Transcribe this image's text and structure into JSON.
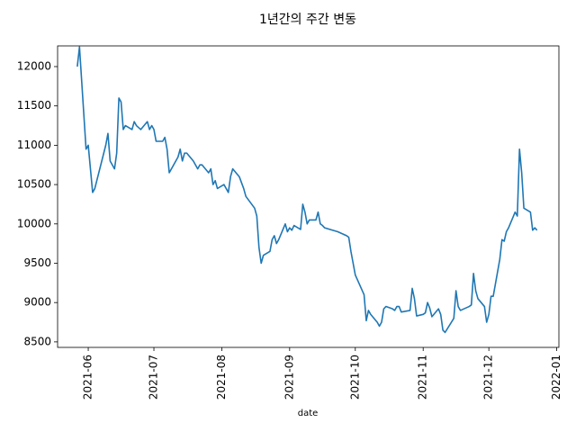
{
  "chart_data": {
    "type": "line",
    "title": "1년간의 주간 변동",
    "x_label": "date",
    "color": "#1f77b4",
    "x": [
      "2021-05-27",
      "2021-05-28",
      "2021-05-31",
      "2021-06-01",
      "2021-06-03",
      "2021-06-04",
      "2021-06-09",
      "2021-06-10",
      "2021-06-11",
      "2021-06-13",
      "2021-06-14",
      "2021-06-15",
      "2021-06-16",
      "2021-06-17",
      "2021-06-18",
      "2021-06-21",
      "2021-06-22",
      "2021-06-23",
      "2021-06-25",
      "2021-06-28",
      "2021-06-29",
      "2021-06-30",
      "2021-07-01",
      "2021-07-02",
      "2021-07-05",
      "2021-07-06",
      "2021-07-07",
      "2021-07-08",
      "2021-07-12",
      "2021-07-13",
      "2021-07-14",
      "2021-07-15",
      "2021-07-16",
      "2021-07-19",
      "2021-07-21",
      "2021-07-22",
      "2021-07-23",
      "2021-07-26",
      "2021-07-27",
      "2021-07-28",
      "2021-07-29",
      "2021-07-30",
      "2021-08-02",
      "2021-08-04",
      "2021-08-05",
      "2021-08-06",
      "2021-08-09",
      "2021-08-11",
      "2021-08-12",
      "2021-08-16",
      "2021-08-17",
      "2021-08-18",
      "2021-08-19",
      "2021-08-20",
      "2021-08-23",
      "2021-08-24",
      "2021-08-25",
      "2021-08-26",
      "2021-08-27",
      "2021-08-30",
      "2021-08-31",
      "2021-09-01",
      "2021-09-02",
      "2021-09-03",
      "2021-09-06",
      "2021-09-07",
      "2021-09-08",
      "2021-09-09",
      "2021-09-10",
      "2021-09-13",
      "2021-09-14",
      "2021-09-15",
      "2021-09-16",
      "2021-09-17",
      "2021-09-23",
      "2021-09-27",
      "2021-09-28",
      "2021-09-29",
      "2021-09-30",
      "2021-10-01",
      "2021-10-05",
      "2021-10-06",
      "2021-10-07",
      "2021-10-08",
      "2021-10-11",
      "2021-10-12",
      "2021-10-13",
      "2021-10-14",
      "2021-10-15",
      "2021-10-18",
      "2021-10-19",
      "2021-10-20",
      "2021-10-21",
      "2021-10-22",
      "2021-10-26",
      "2021-10-27",
      "2021-10-28",
      "2021-10-29",
      "2021-11-01",
      "2021-11-02",
      "2021-11-03",
      "2021-11-04",
      "2021-11-05",
      "2021-11-08",
      "2021-11-09",
      "2021-11-10",
      "2021-11-11",
      "2021-11-15",
      "2021-11-16",
      "2021-11-17",
      "2021-11-18",
      "2021-11-22",
      "2021-11-23",
      "2021-11-24",
      "2021-11-25",
      "2021-11-26",
      "2021-11-29",
      "2021-11-30",
      "2021-12-01",
      "2021-12-02",
      "2021-12-03",
      "2021-12-06",
      "2021-12-07",
      "2021-12-08",
      "2021-12-09",
      "2021-12-10",
      "2021-12-13",
      "2021-12-14",
      "2021-12-15",
      "2021-12-16",
      "2021-12-17",
      "2021-12-20",
      "2021-12-21",
      "2021-12-22",
      "2021-12-23"
    ],
    "values": [
      12000,
      12250,
      10950,
      11000,
      10400,
      10450,
      11000,
      11150,
      10800,
      10700,
      10900,
      11600,
      11550,
      11200,
      11250,
      11200,
      11300,
      11250,
      11200,
      11300,
      11200,
      11250,
      11200,
      11050,
      11050,
      11100,
      10950,
      10650,
      10850,
      10950,
      10800,
      10900,
      10900,
      10800,
      10700,
      10750,
      10750,
      10650,
      10700,
      10500,
      10550,
      10450,
      10500,
      10400,
      10600,
      10700,
      10600,
      10450,
      10350,
      10200,
      10100,
      9700,
      9500,
      9600,
      9650,
      9800,
      9850,
      9750,
      9800,
      10000,
      9900,
      9950,
      9920,
      9980,
      9930,
      10250,
      10150,
      10000,
      10050,
      10050,
      10150,
      10000,
      9980,
      9950,
      9900,
      9850,
      9830,
      9650,
      9500,
      9350,
      9100,
      8770,
      8900,
      8850,
      8750,
      8700,
      8750,
      8920,
      8950,
      8920,
      8900,
      8950,
      8950,
      8880,
      8900,
      9180,
      9050,
      8830,
      8850,
      8870,
      9000,
      8930,
      8820,
      8920,
      8850,
      8650,
      8620,
      8800,
      9150,
      8950,
      8900,
      8950,
      8970,
      9370,
      9150,
      9050,
      8950,
      8750,
      8850,
      9080,
      9080,
      9550,
      9800,
      9780,
      9900,
      9950,
      10150,
      10100,
      10950,
      10650,
      10200,
      10150,
      9920,
      9950,
      9920
    ],
    "xlim": [
      "2021-05-18",
      "2022-01-02"
    ],
    "xticks": [
      {
        "value": "2021-06-01",
        "label": "2021-06"
      },
      {
        "value": "2021-07-01",
        "label": "2021-07"
      },
      {
        "value": "2021-08-01",
        "label": "2021-08"
      },
      {
        "value": "2021-09-01",
        "label": "2021-09"
      },
      {
        "value": "2021-10-01",
        "label": "2021-10"
      },
      {
        "value": "2021-11-01",
        "label": "2021-11"
      },
      {
        "value": "2021-12-01",
        "label": "2021-12"
      },
      {
        "value": "2022-01-01",
        "label": "2022-01"
      }
    ],
    "ylim": [
      8430,
      12263
    ],
    "yticks": [
      8500,
      9000,
      9500,
      10000,
      10500,
      11000,
      11500,
      12000
    ],
    "grid": false
  }
}
